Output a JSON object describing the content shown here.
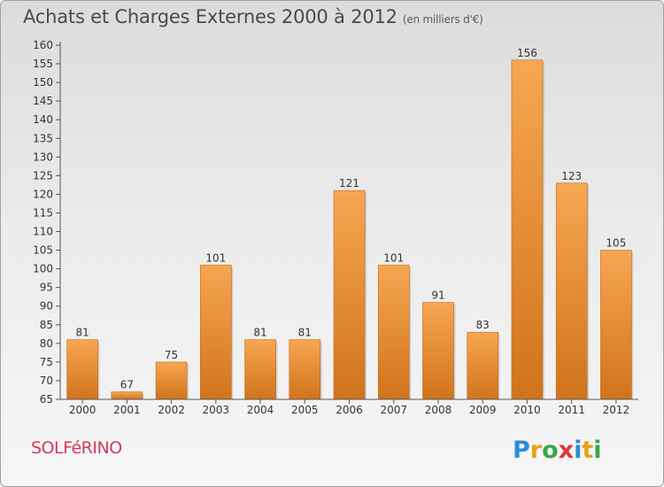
{
  "header": {
    "title": "Achats et Charges Externes 2000 à 2012",
    "unit": "(en milliers d'€)"
  },
  "footer": {
    "town": "SOLFéRINO",
    "logo_text": "Proxiti"
  },
  "colors": {
    "bar_light": "#f7a652",
    "bar_dark": "#d0741c",
    "axis": "#555555",
    "title": "#4a4a4a",
    "town": "#d33a5a"
  },
  "chart_data": {
    "type": "bar",
    "title": "Achats et Charges Externes 2000 à 2012",
    "subtitle": "(en milliers d'€)",
    "categories": [
      "2000",
      "2001",
      "2002",
      "2003",
      "2004",
      "2005",
      "2006",
      "2007",
      "2008",
      "2009",
      "2010",
      "2011",
      "2012"
    ],
    "values": [
      81,
      67,
      75,
      101,
      81,
      81,
      121,
      101,
      91,
      83,
      156,
      123,
      105
    ],
    "ylim": [
      65,
      160
    ],
    "ytick_step": 5,
    "grid": false,
    "legend": "none"
  }
}
